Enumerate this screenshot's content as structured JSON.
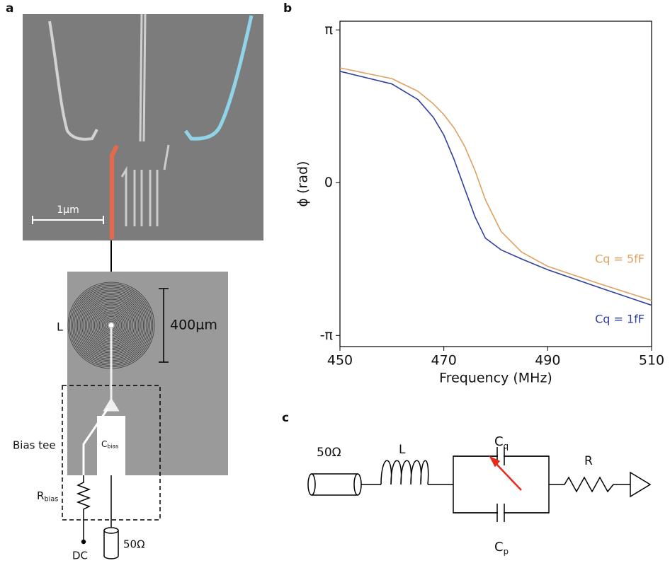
{
  "panel_labels": [
    "a",
    "b",
    "c"
  ],
  "panel_a": {
    "scale_bar": "1µm",
    "inductor": "L",
    "inductor_scale": "400µm",
    "bias_tee": "Bias tee",
    "r_bias": {
      "main": "R",
      "sub": "bias"
    },
    "c_bias": {
      "main": "C",
      "sub": "bias"
    },
    "dc": "DC",
    "port": "50Ω"
  },
  "panel_c": {
    "port": "50Ω",
    "inductor": "L",
    "cq": {
      "main": "C",
      "sub": "q"
    },
    "resistor": "R",
    "cp": {
      "main": "C",
      "sub": "p"
    }
  },
  "chart_data": {
    "type": "line",
    "xlabel": "Frequency (MHz)",
    "ylabel": "ϕ (rad)",
    "x": [
      450,
      460,
      465,
      468,
      470,
      472,
      474,
      476,
      478,
      481,
      485,
      490,
      500,
      510
    ],
    "series": [
      {
        "name": "Cq = 5fF",
        "color": "#e0a060",
        "values": [
          2.36,
          2.14,
          1.88,
          1.62,
          1.4,
          1.12,
          0.75,
          0.25,
          -0.35,
          -1.0,
          -1.43,
          -1.72,
          -2.08,
          -2.42
        ]
      },
      {
        "name": "Cq = 1fF",
        "color": "#2f3fa0",
        "values": [
          2.29,
          2.03,
          1.71,
          1.34,
          0.98,
          0.47,
          -0.12,
          -0.7,
          -1.14,
          -1.38,
          -1.57,
          -1.79,
          -2.16,
          -2.52
        ]
      }
    ],
    "xlim": [
      450,
      510
    ],
    "xticks": [
      450,
      470,
      490,
      510
    ],
    "ylim": [
      -3.37,
      3.32
    ],
    "yticks": [
      {
        "value": -3.14159,
        "label": "-π"
      },
      0,
      {
        "value": 3.14159,
        "label": "π"
      }
    ]
  }
}
